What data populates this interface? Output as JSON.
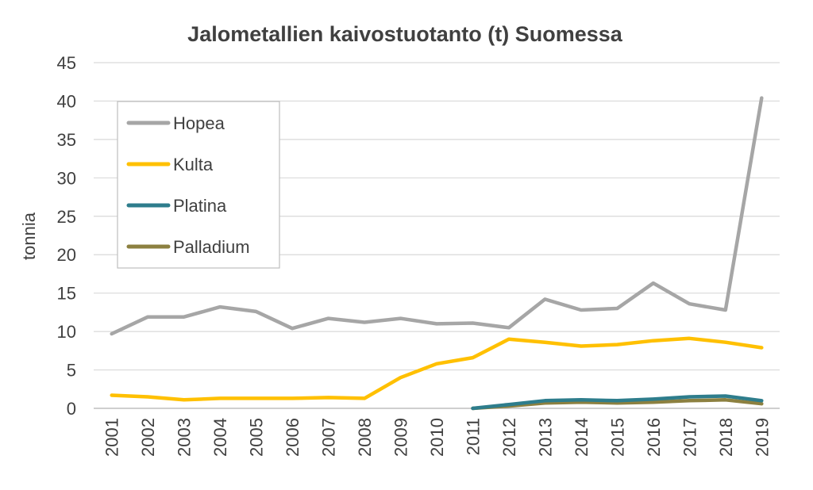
{
  "chart_data": {
    "type": "line",
    "title": "Jalometallien kaivostuotanto (t) Suomessa",
    "xlabel": "",
    "ylabel": "tonnia",
    "ylim": [
      0,
      45
    ],
    "yticks": [
      0,
      5,
      10,
      15,
      20,
      25,
      30,
      35,
      40,
      45
    ],
    "grid": true,
    "legend": "top-left",
    "x": [
      "2001",
      "2002",
      "2003",
      "2004",
      "2005",
      "2006",
      "2007",
      "2008",
      "2009",
      "2010",
      "2011",
      "2012",
      "2013",
      "2014",
      "2015",
      "2016",
      "2017",
      "2018",
      "2019"
    ],
    "series": [
      {
        "name": "Hopea",
        "color": "#a6a6a6",
        "values": [
          9.7,
          11.9,
          11.9,
          13.2,
          12.6,
          10.4,
          11.7,
          11.2,
          11.7,
          11.0,
          11.1,
          10.5,
          14.2,
          12.8,
          13.0,
          16.3,
          13.6,
          12.8,
          40.4
        ]
      },
      {
        "name": "Kulta",
        "color": "#ffc000",
        "values": [
          1.7,
          1.5,
          1.1,
          1.3,
          1.3,
          1.3,
          1.4,
          1.3,
          4.0,
          5.8,
          6.6,
          9.0,
          8.6,
          8.1,
          8.3,
          8.8,
          9.1,
          8.6,
          7.9
        ]
      },
      {
        "name": "Platina",
        "color": "#2e7d8c",
        "values": [
          null,
          null,
          null,
          null,
          null,
          null,
          null,
          null,
          null,
          null,
          0.0,
          0.5,
          1.0,
          1.1,
          1.0,
          1.2,
          1.5,
          1.6,
          1.0
        ]
      },
      {
        "name": "Palladium",
        "color": "#8c8040",
        "values": [
          null,
          null,
          null,
          null,
          null,
          null,
          null,
          null,
          null,
          null,
          0.0,
          0.3,
          0.7,
          0.8,
          0.7,
          0.8,
          1.0,
          1.1,
          0.6
        ]
      }
    ]
  }
}
